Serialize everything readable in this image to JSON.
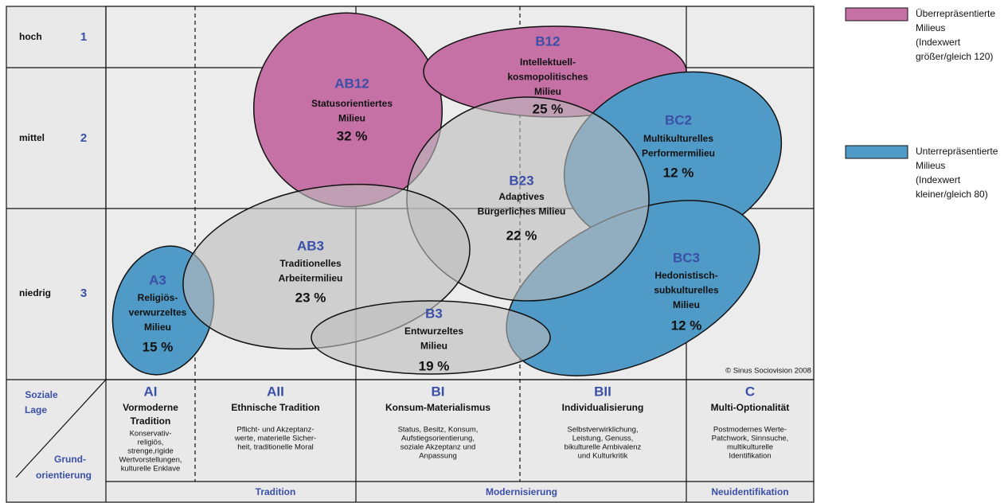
{
  "rows": [
    {
      "label": "hoch",
      "number": "1"
    },
    {
      "label": "mittel",
      "number": "2"
    },
    {
      "label": "niedrig",
      "number": "3"
    }
  ],
  "milieus": [
    {
      "code": "AB12",
      "name": [
        "Statusorientiertes",
        "Milieu"
      ],
      "share": "32 %"
    },
    {
      "code": "B12",
      "name": [
        "Intellektuell-",
        "kosmopolitisches",
        "Milieu"
      ],
      "share": "25 %"
    },
    {
      "code": "BC2",
      "name": [
        "Multikulturelles",
        "Performermilieu"
      ],
      "share": "12 %"
    },
    {
      "code": "B23",
      "name": [
        "Adaptives",
        "Bürgerliches Milieu"
      ],
      "share": "22 %"
    },
    {
      "code": "AB3",
      "name": [
        "Traditionelles",
        "Arbeitermilieu"
      ],
      "share": "23 %"
    },
    {
      "code": "BC3",
      "name": [
        "Hedonistisch-",
        "subkulturelles",
        "Milieu"
      ],
      "share": "12 %"
    },
    {
      "code": "A3",
      "name": [
        "Religiös-",
        "verwurzeltes",
        "Milieu"
      ],
      "share": "15 %"
    },
    {
      "code": "B3",
      "name": [
        "Entwurzeltes",
        "Milieu"
      ],
      "share": "19 %"
    }
  ],
  "axis": {
    "top": [
      "Soziale",
      "Lage"
    ],
    "bottom": [
      "Grund-",
      "orientierung"
    ]
  },
  "columns": [
    {
      "code": "AI",
      "title": [
        "Vormoderne",
        "Tradition"
      ],
      "description": [
        "Konservativ-",
        "religiös,",
        "strenge,rigide",
        "Wertvorstellungen,",
        "kulturelle Enklave"
      ]
    },
    {
      "code": "AII",
      "title": [
        "Ethnische Tradition"
      ],
      "description": [
        "Pflicht- und Akzeptanz-",
        "werte, materielle Sicher-",
        "heit, traditionelle Moral"
      ]
    },
    {
      "code": "BI",
      "title": [
        "Konsum-Materialismus"
      ],
      "description": [
        "Status, Besitz, Konsum,",
        "Aufstiegsorientierung,",
        "soziale Akzeptanz und",
        "Anpassung"
      ]
    },
    {
      "code": "BII",
      "title": [
        "Individualisierung"
      ],
      "description": [
        "Selbstverwirklichung,",
        "Leistung, Genuss,",
        "bikulturelle Ambivalenz",
        "und Kulturkritik"
      ]
    },
    {
      "code": "C",
      "title": [
        "Multi-Optionalität"
      ],
      "description": [
        "Postmodernes Werte-",
        "Patchwork, Sinnsuche,",
        "multikulturelle",
        "Identifikation"
      ]
    }
  ],
  "groups": [
    "Tradition",
    "Modernisierung",
    "Neuidentifikation"
  ],
  "copyright": "© Sinus Sociovision 2008",
  "legend": [
    {
      "label": [
        "Überrepräsentierte",
        "Milieus",
        "(Indexwert",
        "größer/gleich 120)"
      ]
    },
    {
      "label": [
        "Unterrepräsentierte",
        "Milieus",
        "(Indexwert",
        "kleiner/gleich 80)"
      ]
    }
  ]
}
